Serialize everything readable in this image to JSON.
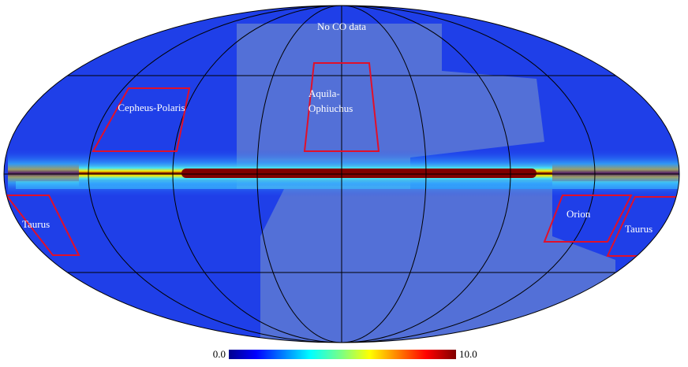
{
  "labels": {
    "no_data": "No CO data",
    "cepheus_polaris": "Cepheus-Polaris",
    "aquila_ophiuchus": [
      "Aquila-",
      "Ophiuchus"
    ],
    "taurus_left": "Taurus",
    "orion": "Orion",
    "taurus_right": "Taurus"
  },
  "colorbar": {
    "min": {
      "value": 0,
      "label": "0.0"
    },
    "max": {
      "value": 10,
      "label": "10.0"
    }
  }
}
